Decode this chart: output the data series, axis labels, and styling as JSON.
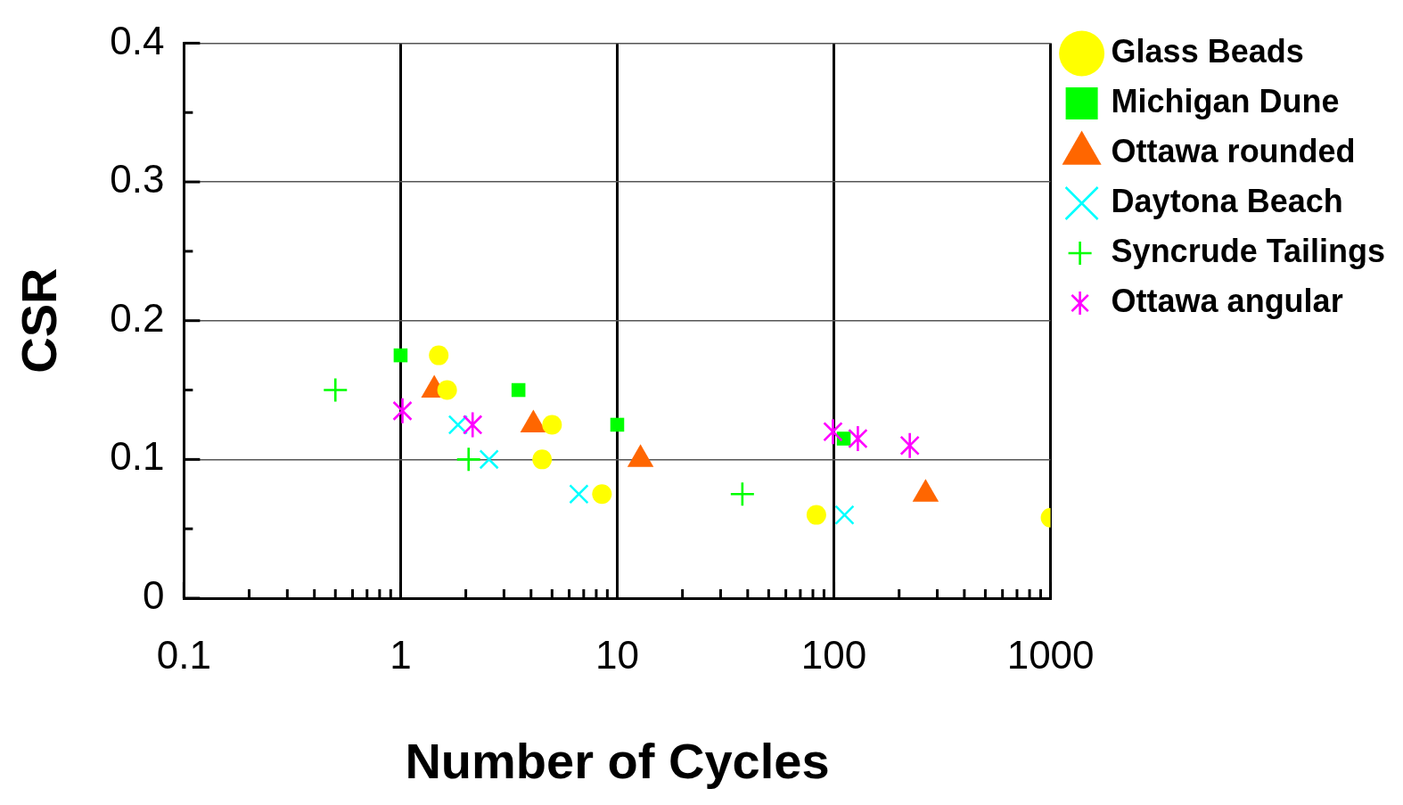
{
  "chart_data": {
    "type": "scatter",
    "xlabel": "Number of Cycles",
    "ylabel": "CSR",
    "log": "x",
    "grid": true,
    "legend": "right",
    "xlim": [
      0.1,
      1000
    ],
    "ylim": [
      0,
      0.4
    ],
    "xticks": [
      0.1,
      {
        "value": 0.2,
        "label": null
      },
      {
        "value": 0.3,
        "label": null
      },
      {
        "value": 0.4,
        "label": null
      },
      {
        "value": 0.5,
        "label": null
      },
      {
        "value": 0.6,
        "label": null
      },
      {
        "value": 0.7,
        "label": null
      },
      {
        "value": 0.8,
        "label": null
      },
      {
        "value": 0.9,
        "label": null
      },
      1,
      {
        "value": 2,
        "label": null
      },
      {
        "value": 3,
        "label": null
      },
      {
        "value": 4,
        "label": null
      },
      {
        "value": 5,
        "label": null
      },
      {
        "value": 6,
        "label": null
      },
      {
        "value": 7,
        "label": null
      },
      {
        "value": 8,
        "label": null
      },
      {
        "value": 9,
        "label": null
      },
      10,
      {
        "value": 20,
        "label": null
      },
      {
        "value": 30,
        "label": null
      },
      {
        "value": 40,
        "label": null
      },
      {
        "value": 50,
        "label": null
      },
      {
        "value": 60,
        "label": null
      },
      {
        "value": 70,
        "label": null
      },
      {
        "value": 80,
        "label": null
      },
      {
        "value": 90,
        "label": null
      },
      100,
      {
        "value": 200,
        "label": null
      },
      {
        "value": 300,
        "label": null
      },
      {
        "value": 400,
        "label": null
      },
      {
        "value": 500,
        "label": null
      },
      {
        "value": 600,
        "label": null
      },
      {
        "value": 700,
        "label": null
      },
      {
        "value": 800,
        "label": null
      },
      {
        "value": 900,
        "label": null
      },
      1000
    ],
    "yticks": [
      0,
      {
        "value": 0.05,
        "label": null
      },
      0.1,
      {
        "value": 0.15,
        "label": null
      },
      0.2,
      {
        "value": 0.25,
        "label": null
      },
      0.3,
      {
        "value": 0.35,
        "label": null
      },
      0.4
    ],
    "series": [
      {
        "name": "Glass Beads",
        "color": "#ffff00",
        "marker": "circle",
        "x": [
          1.5,
          1.64,
          5,
          4.5,
          8.5,
          83,
          1000
        ],
        "values": [
          0.175,
          0.15,
          0.125,
          0.1,
          0.075,
          0.06,
          0.058
        ]
      },
      {
        "name": "Michigan Dune",
        "color": "#00ff00",
        "marker": "square",
        "x": [
          1,
          3.5,
          10,
          111
        ],
        "values": [
          0.175,
          0.15,
          0.125,
          0.115
        ]
      },
      {
        "name": "Ottawa rounded",
        "color": "#ff6600",
        "marker": "triangle",
        "x": [
          1.43,
          4.1,
          12.8,
          265
        ],
        "values": [
          0.15,
          0.125,
          0.1,
          0.075
        ]
      },
      {
        "name": "Daytona Beach",
        "color": "#00ffff",
        "marker": "cross",
        "x": [
          1.84,
          2.56,
          6.65,
          112
        ],
        "values": [
          0.125,
          0.1,
          0.075,
          0.06
        ]
      },
      {
        "name": "Syncrude Tailings",
        "color": "#00ff00",
        "marker": "cross",
        "x": [
          0.5,
          2.06,
          37.8
        ],
        "values": [
          0.15,
          0.1,
          0.075
        ]
      },
      {
        "name": "Ottawa angular",
        "color": "#ff00ff",
        "marker": "star",
        "x": [
          1.02,
          2.15,
          99,
          129,
          224
        ],
        "values": [
          0.135,
          0.125,
          0.12,
          0.115,
          0.11
        ]
      }
    ]
  }
}
